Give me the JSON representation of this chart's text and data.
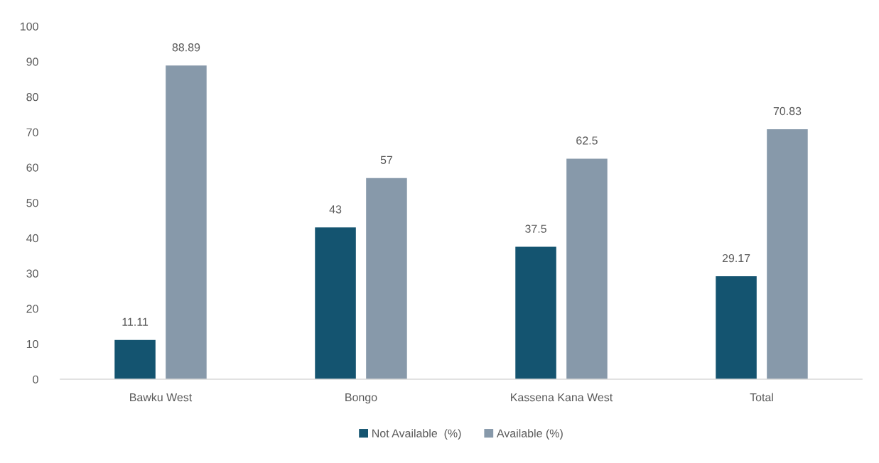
{
  "chart_data": {
    "type": "bar",
    "categories": [
      "Bawku West",
      "Bongo",
      "Kassena Kana West",
      "Total"
    ],
    "series": [
      {
        "name": "Not Available  (%)",
        "color": "#145470",
        "values": [
          11.11,
          43,
          37.5,
          29.17
        ]
      },
      {
        "name": "Available (%)",
        "color": "#8799aa",
        "values": [
          88.89,
          57,
          62.5,
          70.83
        ]
      }
    ],
    "ylim": [
      0,
      100
    ],
    "yticks": [
      0,
      10,
      20,
      30,
      40,
      50,
      60,
      70,
      80,
      90,
      100
    ],
    "grid": false,
    "legend": "bottom",
    "data_labels": true
  }
}
